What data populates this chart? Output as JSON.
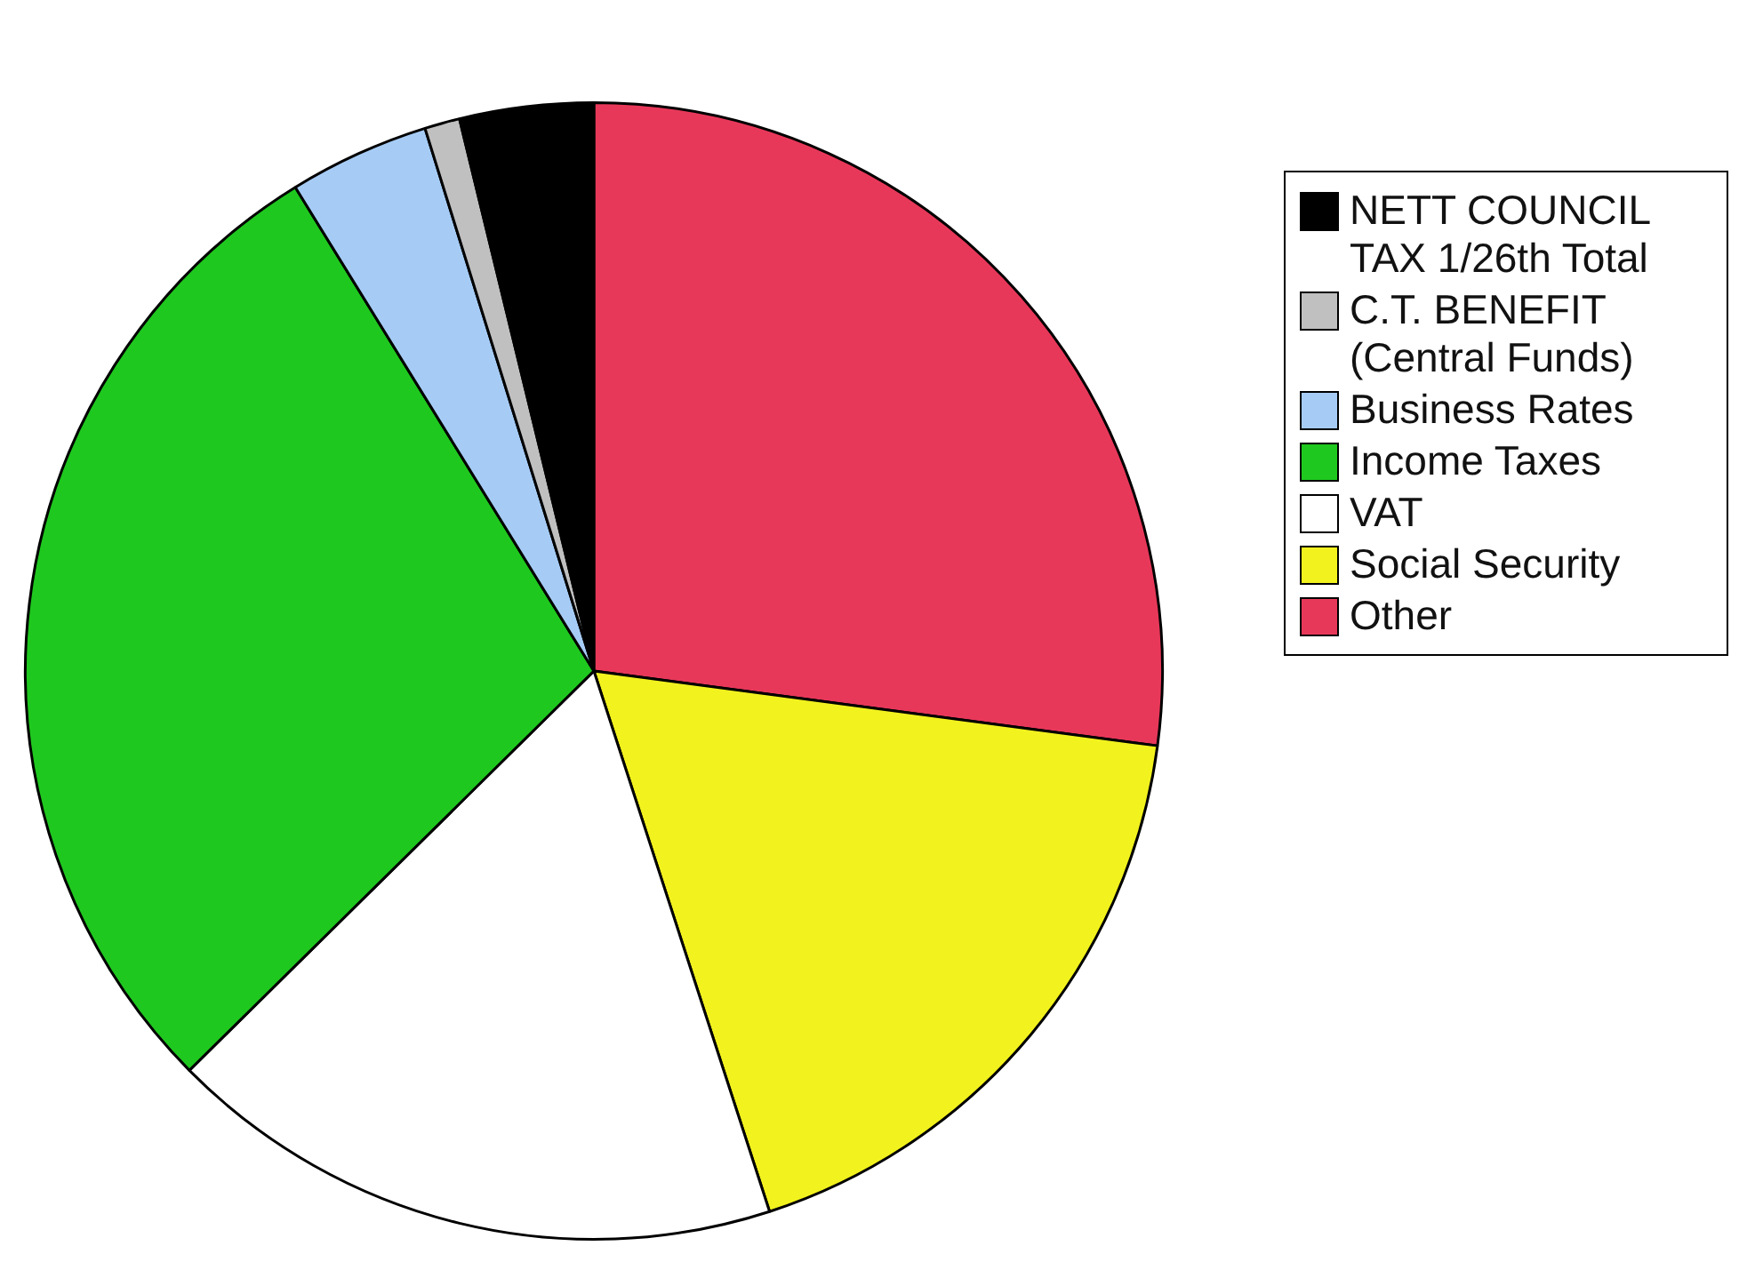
{
  "chart_data": {
    "type": "pie",
    "legend": "right",
    "categories": [
      "Other",
      "Social Security",
      "VAT",
      "Income Taxes",
      "Business Rates",
      "C.T. BENEFIT (Central Funds)",
      "NETT COUNCIL TAX  1/26th Total"
    ],
    "values": [
      27.1,
      17.9,
      17.6,
      28.6,
      4.0,
      1.0,
      3.8
    ],
    "colors": [
      "#e8385a",
      "#f2f21e",
      "#ffffff",
      "#1fc81f",
      "#a6ccf6",
      "#c0c0c0",
      "#000000"
    ]
  }
}
